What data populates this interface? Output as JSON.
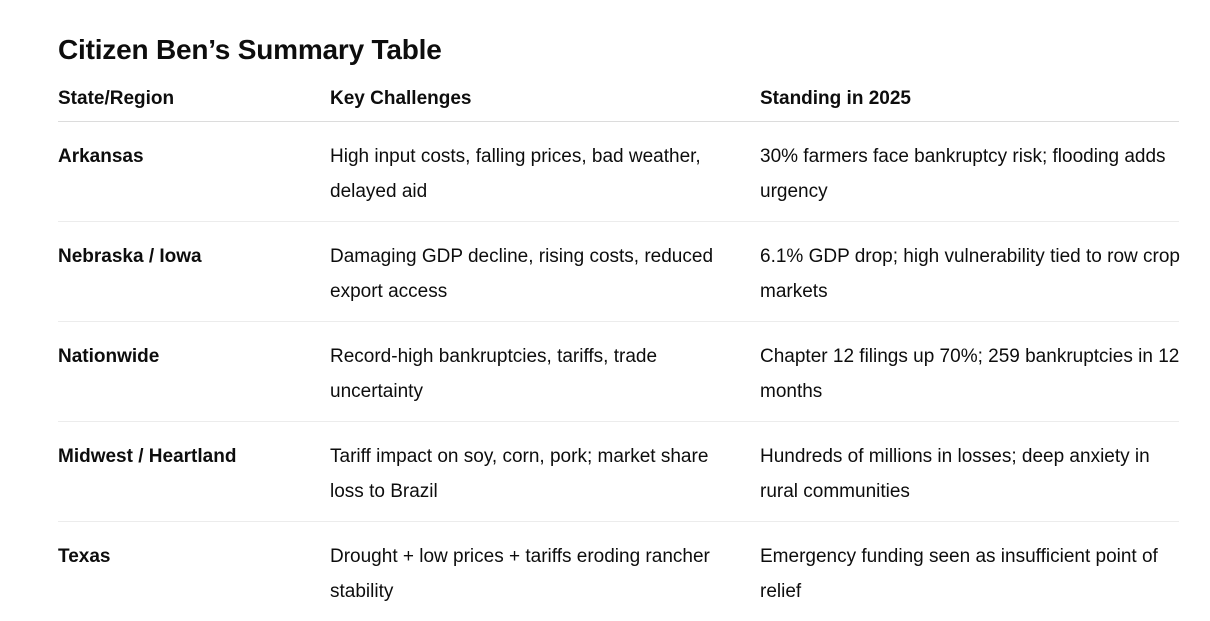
{
  "title": "Citizen Ben’s Summary Table",
  "table": {
    "headers": [
      "State/Region",
      "Key Challenges",
      "Standing in 2025"
    ],
    "rows": [
      {
        "region": "Arkansas",
        "challenges": "High input costs, falling prices, bad weather, delayed aid",
        "standing": "30% farmers face bankruptcy risk; flooding adds urgency"
      },
      {
        "region": "Nebraska / Iowa",
        "challenges": "Damaging GDP decline, rising costs, reduced export access",
        "standing": "6.1% GDP drop; high vulnerability tied to row crop markets"
      },
      {
        "region": "Nationwide",
        "challenges": "Record-high bankruptcies, tariffs, trade uncertainty",
        "standing": "Chapter 12 filings up 70%; 259 bankruptcies in 12 months"
      },
      {
        "region": "Midwest / Heartland",
        "challenges": "Tariff impact on soy, corn, pork; market share loss to Brazil",
        "standing": "Hundreds of millions in losses; deep anxiety in rural communities"
      },
      {
        "region": "Texas",
        "challenges": "Drought + low prices + tariffs eroding rancher stability",
        "standing": "Emergency funding seen as insufficient point of relief"
      }
    ]
  }
}
